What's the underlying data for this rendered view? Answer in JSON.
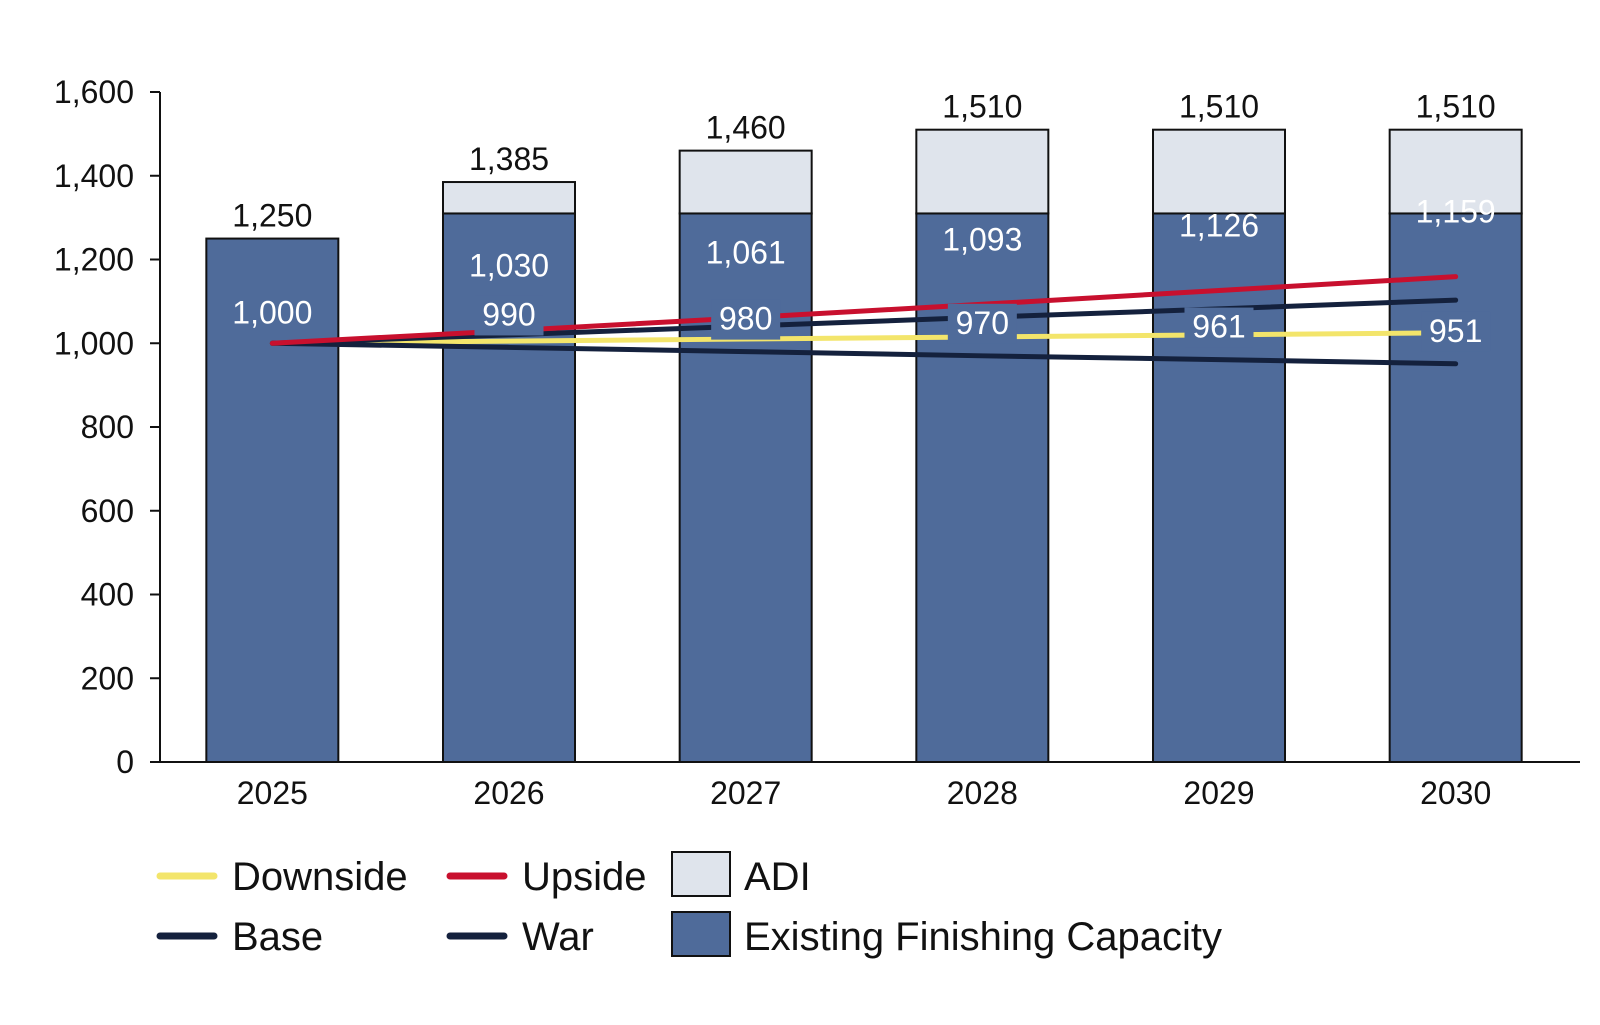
{
  "chart_data": {
    "type": "bar",
    "categories": [
      "2025",
      "2026",
      "2027",
      "2028",
      "2029",
      "2030"
    ],
    "ylim": [
      0,
      1600
    ],
    "yticks": [
      "0",
      "200",
      "400",
      "600",
      "800",
      "1,000",
      "1,200",
      "1,400",
      "1,600"
    ],
    "ytick_values": [
      0,
      200,
      400,
      600,
      800,
      1000,
      1200,
      1400,
      1600
    ],
    "grid": false,
    "legend_position": "bottom",
    "stacked_bars": [
      {
        "name": "Existing Finishing Capacity",
        "values": [
          1250,
          1310,
          1310,
          1310,
          1310,
          1310
        ],
        "color": "#4f6b9a"
      },
      {
        "name": "ADI",
        "values": [
          0,
          75,
          150,
          200,
          200,
          200
        ],
        "color": "#dfe4ec"
      }
    ],
    "bar_totals": [
      "1,250",
      "1,385",
      "1,460",
      "1,510",
      "1,510",
      "1,510"
    ],
    "bar_total_values": [
      1250,
      1385,
      1460,
      1510,
      1510,
      1510
    ],
    "line_series": [
      {
        "name": "Downside",
        "values": [
          1000,
          1005,
          1010,
          1015,
          1020,
          1025
        ],
        "color": "#f3e56b"
      },
      {
        "name": "Upside",
        "values": [
          1000,
          1030,
          1061,
          1093,
          1126,
          1159
        ],
        "color": "#c8102e"
      },
      {
        "name": "Base",
        "values": [
          1000,
          1020,
          1041,
          1062,
          1082,
          1103
        ],
        "color": "#14213d"
      },
      {
        "name": "War",
        "values": [
          1000,
          990,
          980,
          970,
          961,
          951
        ],
        "color": "#14213d"
      }
    ],
    "line_labels": [
      {
        "series": "Upside",
        "labels": [
          "1,000",
          "1,030",
          "1,061",
          "1,093",
          "1,126",
          "1,159"
        ]
      },
      {
        "series": "War",
        "labels": [
          "",
          "990",
          "980",
          "970",
          "961",
          "951"
        ]
      }
    ],
    "legend": [
      {
        "name": "Downside",
        "kind": "line",
        "color": "#f3e56b"
      },
      {
        "name": "Upside",
        "kind": "line",
        "color": "#c8102e"
      },
      {
        "name": "ADI",
        "kind": "box",
        "color": "#dfe4ec"
      },
      {
        "name": "Base",
        "kind": "line",
        "color": "#14213d"
      },
      {
        "name": "War",
        "kind": "line",
        "color": "#14213d"
      },
      {
        "name": "Existing Finishing Capacity",
        "kind": "box",
        "color": "#4f6b9a"
      }
    ]
  }
}
